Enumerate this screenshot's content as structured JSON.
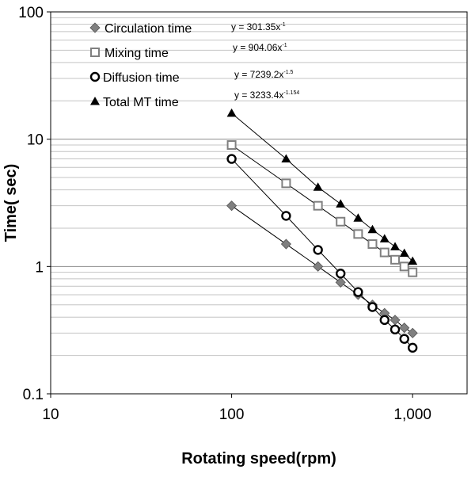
{
  "chart_data": {
    "type": "scatter",
    "xscale": "log",
    "yscale": "log",
    "xlim": [
      10,
      2000
    ],
    "ylim": [
      0.1,
      100
    ],
    "xlabel": "Rotating speed(rpm)",
    "ylabel": "Time( sec)",
    "x_tick_labels": [
      "10",
      "100",
      "1,000"
    ],
    "y_tick_labels": [
      "0.1",
      "1",
      "10",
      "100"
    ],
    "grid": "horizontal",
    "legend_position": "top-left",
    "series": [
      {
        "name": "Circulation time",
        "marker": "diamond",
        "color": "#808080",
        "equation_base": "y =  301.35x",
        "equation_exp": "-1",
        "x": [
          100,
          200,
          300,
          400,
          500,
          600,
          700,
          800,
          900,
          1000
        ],
        "y": [
          3.0,
          1.5,
          1.0,
          0.75,
          0.6,
          0.5,
          0.43,
          0.38,
          0.33,
          0.3
        ]
      },
      {
        "name": "Mixing time",
        "marker": "square-open",
        "color": "#808080",
        "equation_base": "y =  904.06x",
        "equation_exp": "-1",
        "x": [
          100,
          200,
          300,
          400,
          500,
          600,
          700,
          800,
          900,
          1000
        ],
        "y": [
          9.0,
          4.5,
          3.0,
          2.25,
          1.8,
          1.5,
          1.29,
          1.13,
          1.0,
          0.9
        ]
      },
      {
        "name": "Diffusion time",
        "marker": "circle-open",
        "color": "#000000",
        "equation_base": "y =  7239.2x",
        "equation_exp": "-1.5",
        "x": [
          100,
          200,
          300,
          400,
          500,
          600,
          700,
          800,
          900,
          1000
        ],
        "y": [
          7.0,
          2.5,
          1.35,
          0.88,
          0.63,
          0.48,
          0.38,
          0.32,
          0.27,
          0.23
        ]
      },
      {
        "name": "Total MT time",
        "marker": "triangle",
        "color": "#000000",
        "equation_base": "y =  3233.4x",
        "equation_exp": "-1.154",
        "x": [
          100,
          200,
          300,
          400,
          500,
          600,
          700,
          800,
          900,
          1000
        ],
        "y": [
          16.0,
          7.0,
          4.2,
          3.1,
          2.4,
          1.95,
          1.65,
          1.43,
          1.27,
          1.1
        ]
      }
    ]
  }
}
